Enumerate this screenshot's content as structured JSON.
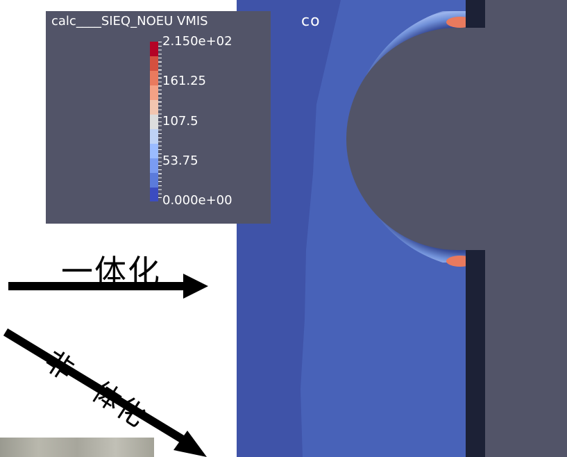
{
  "viewport": {
    "label": "co",
    "colors": {
      "background": "#525468",
      "plate": "#3F53A8",
      "band": "#4862B8",
      "hole": "#525468",
      "edge": "#1C2136"
    }
  },
  "legend": {
    "title": "calc____SIEQ_NOEU VMIS",
    "labels": [
      "2.150e+02",
      "161.25",
      "107.5",
      "53.75",
      "0.000e+00"
    ],
    "colorscale": [
      "#B40426",
      "#D4503F",
      "#E97A5E",
      "#F4A185",
      "#F2C6B0",
      "#DCDDDD",
      "#BED2F5",
      "#9ABBFF",
      "#7A9CF2",
      "#5B7BDB",
      "#3B4CC0"
    ]
  },
  "annotations": {
    "integrated": "一体化",
    "non_integrated": "非一体化"
  }
}
